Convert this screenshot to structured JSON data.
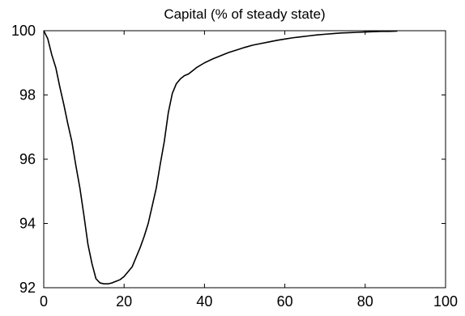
{
  "chart_data": {
    "type": "line",
    "title": "Capital (% of steady state)",
    "xlabel": "",
    "ylabel": "",
    "xlim": [
      0,
      100
    ],
    "ylim": [
      92,
      100
    ],
    "xticks": [
      0,
      20,
      40,
      60,
      80,
      100
    ],
    "yticks": [
      92,
      94,
      96,
      98,
      100
    ],
    "grid": false,
    "series": [
      {
        "color": "#000000",
        "x": [
          0,
          1,
          2,
          3,
          4,
          5,
          6,
          7,
          8,
          9,
          10,
          11,
          12,
          13,
          14,
          15,
          16,
          17,
          18,
          19,
          20,
          21,
          22,
          23,
          24,
          25,
          26,
          27,
          28,
          29,
          30,
          31,
          32,
          33,
          34,
          35,
          36,
          37,
          38,
          40,
          42,
          44,
          46,
          48,
          50,
          52,
          54,
          56,
          58,
          60,
          62,
          64,
          66,
          68,
          70,
          72,
          74,
          76,
          78,
          80,
          82,
          84,
          86,
          88
        ],
        "y": [
          100,
          99.75,
          99.25,
          98.85,
          98.25,
          97.7,
          97.1,
          96.55,
          95.8,
          95.1,
          94.25,
          93.35,
          92.75,
          92.28,
          92.15,
          92.12,
          92.12,
          92.15,
          92.2,
          92.25,
          92.35,
          92.5,
          92.65,
          92.95,
          93.25,
          93.6,
          94.0,
          94.55,
          95.1,
          95.85,
          96.55,
          97.45,
          98.05,
          98.35,
          98.5,
          98.6,
          98.65,
          98.75,
          98.85,
          99.0,
          99.12,
          99.22,
          99.32,
          99.4,
          99.48,
          99.55,
          99.6,
          99.65,
          99.7,
          99.74,
          99.78,
          99.81,
          99.84,
          99.87,
          99.89,
          99.91,
          99.93,
          99.94,
          99.95,
          99.96,
          99.97,
          99.98,
          99.98,
          99.99
        ]
      }
    ]
  }
}
